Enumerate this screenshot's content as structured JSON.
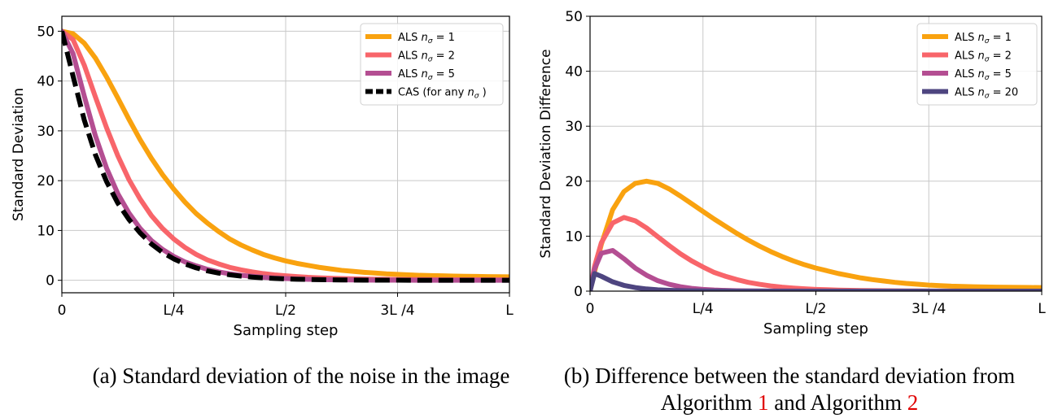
{
  "figure": {
    "caption_a": "(a) Standard deviation of the noise in the image",
    "caption_b_line1": "(b) Difference between the standard deviation from",
    "caption_b_line2_pre": "Algorithm ",
    "caption_b_ref1": "1",
    "caption_b_line2_mid": " and Algorithm ",
    "caption_b_ref2": "2"
  },
  "colors": {
    "n1": "#F9A20F",
    "n2": "#F8656A",
    "n5": "#B44E92",
    "n20": "#4E4580",
    "cas": "#000000",
    "grid": "#c8c8c8",
    "ref": "#e00000"
  },
  "chart_data": [
    {
      "type": "line",
      "xlabel": "Sampling step",
      "ylabel": "Standard Deviation",
      "xlim": [
        0,
        1
      ],
      "ylim": [
        -2.5,
        53
      ],
      "xticks": [
        0,
        0.25,
        0.5,
        0.75,
        1
      ],
      "xtick_labels": [
        "0",
        "L/4",
        "L/2",
        "3L /4",
        "L"
      ],
      "yticks": [
        0,
        10,
        20,
        30,
        40,
        50
      ],
      "ytick_labels": [
        "0",
        "10",
        "20",
        "30",
        "40",
        "50"
      ],
      "grid": true,
      "legend_position": "top-right",
      "x": [
        0,
        0.025,
        0.05,
        0.075,
        0.1,
        0.125,
        0.15,
        0.175,
        0.2,
        0.225,
        0.25,
        0.275,
        0.3,
        0.325,
        0.35,
        0.375,
        0.4,
        0.425,
        0.45,
        0.475,
        0.5,
        0.525,
        0.55,
        0.575,
        0.6,
        0.625,
        0.65,
        0.675,
        0.7,
        0.725,
        0.75,
        0.775,
        0.8,
        0.825,
        0.85,
        0.875,
        0.9,
        0.925,
        0.95,
        0.975,
        1
      ],
      "series": [
        {
          "name": "ALS n_σ = 1",
          "legend_label": "ALS",
          "legend_sub": "= 1",
          "color_key": "n1",
          "dash": false,
          "values": [
            50,
            49.5,
            47.6,
            44.6,
            40.8,
            36.6,
            32.3,
            28.2,
            24.5,
            21.2,
            18.3,
            15.7,
            13.4,
            11.5,
            9.8,
            8.3,
            7.1,
            6.1,
            5.2,
            4.5,
            3.9,
            3.4,
            3.0,
            2.6,
            2.3,
            2.0,
            1.8,
            1.6,
            1.45,
            1.3,
            1.2,
            1.1,
            1.0,
            0.95,
            0.9,
            0.85,
            0.8,
            0.78,
            0.75,
            0.72,
            0.7
          ]
        },
        {
          "name": "ALS n_σ = 2",
          "legend_label": "ALS",
          "legend_sub": "= 2",
          "color_key": "n2",
          "dash": false,
          "values": [
            50,
            48.3,
            43.2,
            36.8,
            30.6,
            25.0,
            20.2,
            16.3,
            13.0,
            10.4,
            8.3,
            6.6,
            5.2,
            4.1,
            3.3,
            2.6,
            2.1,
            1.7,
            1.35,
            1.1,
            0.9,
            0.75,
            0.6,
            0.5,
            0.42,
            0.35,
            0.3,
            0.26,
            0.22,
            0.2,
            0.18,
            0.16,
            0.15,
            0.14,
            0.13,
            0.12,
            0.12,
            0.11,
            0.11,
            0.1,
            0.1
          ]
        },
        {
          "name": "ALS n_σ = 5",
          "legend_label": "ALS",
          "legend_sub": "= 5",
          "color_key": "n5",
          "dash": false,
          "values": [
            50,
            45.5,
            37.0,
            29.0,
            22.5,
            17.4,
            13.5,
            10.4,
            8.0,
            6.2,
            4.8,
            3.7,
            2.9,
            2.2,
            1.7,
            1.3,
            1.0,
            0.8,
            0.6,
            0.45,
            0.35,
            0.27,
            0.2,
            0.15,
            0.12,
            0.09,
            0.07,
            0.05,
            0.04,
            0.03,
            0.02,
            0.02,
            0.01,
            0.01,
            0.01,
            0,
            0,
            0,
            0,
            0,
            0
          ]
        },
        {
          "name": "CAS (for any n_σ)",
          "legend_label": "CAS (for any",
          "legend_sub": ")",
          "color_key": "cas",
          "dash": true,
          "values": [
            50,
            41.0,
            32.2,
            25.2,
            19.8,
            15.5,
            12.2,
            9.5,
            7.3,
            5.6,
            4.3,
            3.3,
            2.5,
            1.9,
            1.45,
            1.1,
            0.85,
            0.65,
            0.5,
            0.38,
            0.29,
            0.22,
            0.17,
            0.13,
            0.1,
            0.08,
            0.06,
            0.04,
            0.03,
            0.02,
            0.02,
            0.01,
            0.01,
            0.01,
            0,
            0,
            0,
            0,
            0,
            0,
            0
          ]
        }
      ]
    },
    {
      "type": "line",
      "xlabel": "Sampling step",
      "ylabel": "Standard Deviation Difference",
      "xlim": [
        0,
        1
      ],
      "ylim": [
        0,
        50
      ],
      "xticks": [
        0,
        0.25,
        0.5,
        0.75,
        1
      ],
      "xtick_labels": [
        "0",
        "L/4",
        "L/2",
        "3L /4",
        "L"
      ],
      "yticks": [
        0,
        10,
        20,
        30,
        40,
        50
      ],
      "ytick_labels": [
        "0",
        "10",
        "20",
        "30",
        "40",
        "50"
      ],
      "grid": true,
      "legend_position": "top-right",
      "x": [
        0,
        0.01,
        0.025,
        0.05,
        0.075,
        0.1,
        0.125,
        0.15,
        0.175,
        0.2,
        0.225,
        0.25,
        0.275,
        0.3,
        0.325,
        0.35,
        0.375,
        0.4,
        0.425,
        0.45,
        0.475,
        0.5,
        0.525,
        0.55,
        0.575,
        0.6,
        0.625,
        0.65,
        0.675,
        0.7,
        0.725,
        0.75,
        0.775,
        0.8,
        0.825,
        0.85,
        0.875,
        0.9,
        0.925,
        0.95,
        0.975,
        1
      ],
      "series": [
        {
          "name": "ALS n_σ = 1",
          "legend_label": "ALS",
          "legend_sub": "= 1",
          "color_key": "n1",
          "values": [
            0,
            3.5,
            8.5,
            14.8,
            18.1,
            19.6,
            20.0,
            19.6,
            18.6,
            17.3,
            15.9,
            14.5,
            13.1,
            11.8,
            10.5,
            9.3,
            8.2,
            7.2,
            6.3,
            5.5,
            4.8,
            4.2,
            3.7,
            3.2,
            2.8,
            2.4,
            2.1,
            1.85,
            1.6,
            1.4,
            1.25,
            1.1,
            1.0,
            0.9,
            0.85,
            0.8,
            0.75,
            0.72,
            0.7,
            0.68,
            0.66,
            0.65
          ]
        },
        {
          "name": "ALS n_σ = 2",
          "legend_label": "ALS",
          "legend_sub": "= 2",
          "color_key": "n2",
          "values": [
            0,
            4.5,
            8.8,
            12.4,
            13.4,
            12.8,
            11.5,
            9.9,
            8.3,
            6.8,
            5.5,
            4.4,
            3.4,
            2.7,
            2.1,
            1.6,
            1.25,
            0.95,
            0.72,
            0.55,
            0.42,
            0.32,
            0.25,
            0.19,
            0.15,
            0.12,
            0.09,
            0.07,
            0.05,
            0.04,
            0.03,
            0.02,
            0.02,
            0.01,
            0.01,
            0.01,
            0,
            0,
            0,
            0,
            0,
            0
          ]
        },
        {
          "name": "ALS n_σ = 5",
          "legend_label": "ALS",
          "legend_sub": "= 5",
          "color_key": "n5",
          "values": [
            0,
            4.0,
            6.9,
            7.4,
            5.9,
            4.2,
            2.9,
            1.9,
            1.25,
            0.8,
            0.5,
            0.32,
            0.2,
            0.13,
            0.08,
            0.05,
            0.03,
            0.02,
            0.01,
            0.01,
            0,
            0,
            0,
            0,
            0,
            0,
            0,
            0,
            0,
            0,
            0,
            0,
            0,
            0,
            0,
            0,
            0,
            0,
            0,
            0,
            0,
            0
          ]
        },
        {
          "name": "ALS n_σ = 20",
          "legend_label": "ALS",
          "legend_sub": "= 20",
          "color_key": "n20",
          "values": [
            0,
            3.2,
            2.7,
            1.7,
            1.05,
            0.65,
            0.4,
            0.25,
            0.15,
            0.09,
            0.05,
            0.03,
            0.02,
            0.01,
            0,
            0,
            0,
            0,
            0,
            0,
            0,
            0,
            0,
            0,
            0,
            0,
            0,
            0,
            0,
            0,
            0,
            0,
            0,
            0,
            0,
            0,
            0,
            0,
            0,
            0,
            0,
            0
          ]
        }
      ]
    }
  ]
}
